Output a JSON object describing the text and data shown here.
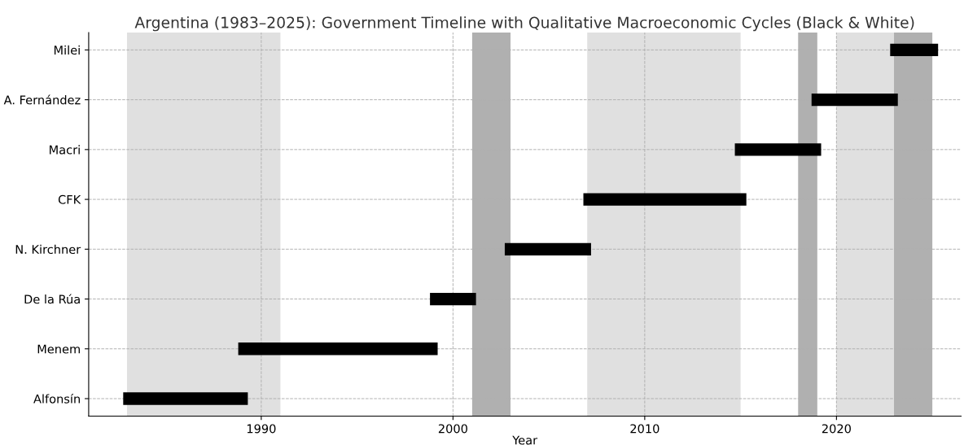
{
  "chart_data": {
    "type": "bar",
    "orientation": "horizontal",
    "title": "Argentina (1983–2025): Government Timeline with Qualitative Macroeconomic Cycles (Black & White)",
    "xlabel": "Year",
    "categories": [
      "Milei",
      "A. Fernández",
      "Macri",
      "CFK",
      "N. Kirchner",
      "De la Rúa",
      "Menem",
      "Alfonsín"
    ],
    "base": [
      2022.8,
      2018.7,
      2014.7,
      2006.8,
      2002.7,
      1998.8,
      1988.8,
      1982.8
    ],
    "values": [
      2.5,
      4.5,
      4.5,
      8.5,
      4.5,
      2.4,
      10.4,
      6.5
    ],
    "color": "#000000",
    "xlim": [
      1981,
      2026.5
    ],
    "xticks": [
      1990,
      2000,
      2010,
      2020
    ],
    "grid": true,
    "bands": [
      {
        "axis": "x",
        "from": 1983,
        "to": 1991,
        "color": "#e0e0e0"
      },
      {
        "axis": "x",
        "from": 2001,
        "to": 2003,
        "color": "#b0b0b0"
      },
      {
        "axis": "x",
        "from": 2007,
        "to": 2015,
        "color": "#e0e0e0"
      },
      {
        "axis": "x",
        "from": 2018,
        "to": 2019,
        "color": "#b0b0b0"
      },
      {
        "axis": "x",
        "from": 2020,
        "to": 2024,
        "color": "#e0e0e0"
      },
      {
        "axis": "x",
        "from": 2023,
        "to": 2025,
        "color": "#b0b0b0"
      }
    ]
  }
}
